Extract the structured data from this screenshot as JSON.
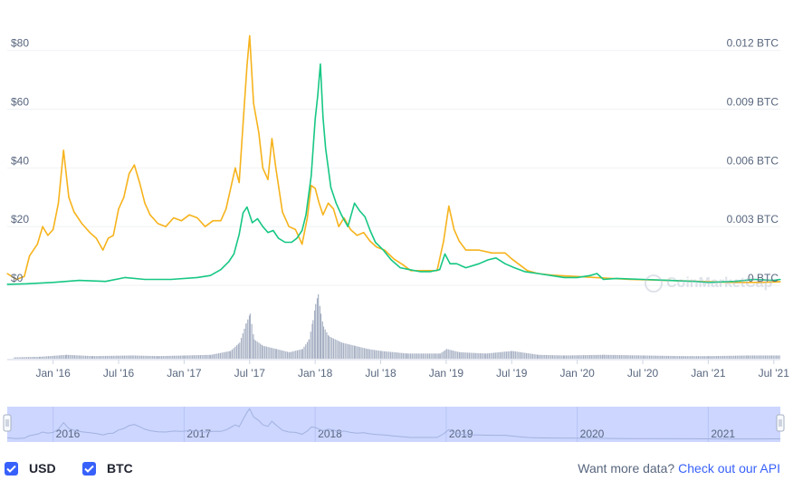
{
  "chart_data": {
    "type": "line",
    "x_labels": [
      "Jan '16",
      "Jul '16",
      "Jan '17",
      "Jul '17",
      "Jan '18",
      "Jul '18",
      "Jan '19",
      "Jul '19",
      "Jan '20",
      "Jul '20",
      "Jan '21",
      "Jul '21"
    ],
    "x": [
      2016.0,
      2016.5,
      2017.0,
      2017.5,
      2018.0,
      2018.5,
      2019.0,
      2019.5,
      2020.0,
      2020.5,
      2021.0,
      2021.5
    ],
    "xlim": [
      2015.65,
      2021.55
    ],
    "y_left": {
      "ticks": [
        "$0",
        "$20",
        "$40",
        "$60",
        "$80"
      ],
      "values": [
        0,
        20,
        40,
        60,
        80
      ],
      "ylim": [
        0,
        83
      ]
    },
    "y_right": {
      "ticks": [
        "0 BTC",
        "0.003 BTC",
        "0.006 BTC",
        "0.009 BTC",
        "0.012 BTC"
      ],
      "values": [
        0,
        0.003,
        0.006,
        0.009,
        0.012
      ],
      "ylim": [
        0,
        0.01245
      ]
    },
    "series": [
      {
        "name": "USD",
        "axis": "left",
        "color": "#f6b31c",
        "points": [
          [
            2015.65,
            4
          ],
          [
            2015.72,
            2
          ],
          [
            2015.78,
            3
          ],
          [
            2015.82,
            10
          ],
          [
            2015.88,
            14
          ],
          [
            2015.92,
            20
          ],
          [
            2015.96,
            17
          ],
          [
            2016.0,
            19
          ],
          [
            2016.04,
            28
          ],
          [
            2016.08,
            46
          ],
          [
            2016.12,
            30
          ],
          [
            2016.16,
            25
          ],
          [
            2016.22,
            21
          ],
          [
            2016.28,
            18
          ],
          [
            2016.33,
            16
          ],
          [
            2016.38,
            12
          ],
          [
            2016.42,
            16
          ],
          [
            2016.46,
            17
          ],
          [
            2016.5,
            26
          ],
          [
            2016.54,
            30
          ],
          [
            2016.58,
            38
          ],
          [
            2016.62,
            41
          ],
          [
            2016.66,
            35
          ],
          [
            2016.7,
            28
          ],
          [
            2016.74,
            24
          ],
          [
            2016.8,
            21
          ],
          [
            2016.86,
            20
          ],
          [
            2016.92,
            23
          ],
          [
            2016.98,
            22
          ],
          [
            2017.04,
            24
          ],
          [
            2017.1,
            23
          ],
          [
            2017.16,
            20
          ],
          [
            2017.22,
            22
          ],
          [
            2017.28,
            22
          ],
          [
            2017.32,
            26
          ],
          [
            2017.36,
            34
          ],
          [
            2017.39,
            40
          ],
          [
            2017.42,
            35
          ],
          [
            2017.45,
            55
          ],
          [
            2017.48,
            75
          ],
          [
            2017.5,
            85
          ],
          [
            2017.53,
            62
          ],
          [
            2017.57,
            52
          ],
          [
            2017.6,
            40
          ],
          [
            2017.64,
            36
          ],
          [
            2017.67,
            50
          ],
          [
            2017.7,
            40
          ],
          [
            2017.75,
            25
          ],
          [
            2017.8,
            20
          ],
          [
            2017.85,
            19
          ],
          [
            2017.9,
            14
          ],
          [
            2017.94,
            23
          ],
          [
            2017.97,
            34
          ],
          [
            2018.0,
            33
          ],
          [
            2018.03,
            28
          ],
          [
            2018.06,
            24
          ],
          [
            2018.1,
            28
          ],
          [
            2018.14,
            26
          ],
          [
            2018.18,
            20
          ],
          [
            2018.22,
            23
          ],
          [
            2018.27,
            19
          ],
          [
            2018.32,
            17
          ],
          [
            2018.37,
            18
          ],
          [
            2018.42,
            15
          ],
          [
            2018.47,
            13
          ],
          [
            2018.53,
            12
          ],
          [
            2018.6,
            9
          ],
          [
            2018.67,
            7
          ],
          [
            2018.73,
            5
          ],
          [
            2018.8,
            5
          ],
          [
            2018.87,
            5
          ],
          [
            2018.93,
            5
          ],
          [
            2018.98,
            15
          ],
          [
            2019.02,
            27
          ],
          [
            2019.06,
            19
          ],
          [
            2019.1,
            15
          ],
          [
            2019.15,
            12
          ],
          [
            2019.25,
            12
          ],
          [
            2019.35,
            11
          ],
          [
            2019.45,
            11
          ],
          [
            2019.5,
            9
          ],
          [
            2019.56,
            7
          ],
          [
            2019.62,
            5
          ],
          [
            2019.7,
            4
          ],
          [
            2019.8,
            3.5
          ],
          [
            2019.9,
            3.2
          ],
          [
            2020.0,
            3
          ],
          [
            2020.2,
            2.5
          ],
          [
            2020.4,
            2
          ],
          [
            2020.6,
            1.8
          ],
          [
            2020.8,
            1.5
          ],
          [
            2021.0,
            1.2
          ],
          [
            2021.2,
            1
          ],
          [
            2021.4,
            1
          ],
          [
            2021.55,
            1.2
          ]
        ]
      },
      {
        "name": "BTC",
        "axis": "right",
        "color": "#16c784",
        "points": [
          [
            2015.65,
            5e-05
          ],
          [
            2015.8,
            8e-05
          ],
          [
            2016.0,
            0.00015
          ],
          [
            2016.2,
            0.00025
          ],
          [
            2016.4,
            0.0002
          ],
          [
            2016.55,
            0.0004
          ],
          [
            2016.7,
            0.0003
          ],
          [
            2016.9,
            0.0003
          ],
          [
            2017.1,
            0.0004
          ],
          [
            2017.2,
            0.0005
          ],
          [
            2017.28,
            0.0008
          ],
          [
            2017.34,
            0.0012
          ],
          [
            2017.38,
            0.0016
          ],
          [
            2017.42,
            0.0026
          ],
          [
            2017.45,
            0.0037
          ],
          [
            2017.48,
            0.004
          ],
          [
            2017.52,
            0.0032
          ],
          [
            2017.56,
            0.0034
          ],
          [
            2017.6,
            0.003
          ],
          [
            2017.64,
            0.0027
          ],
          [
            2017.68,
            0.0028
          ],
          [
            2017.72,
            0.0024
          ],
          [
            2017.77,
            0.0022
          ],
          [
            2017.82,
            0.0022
          ],
          [
            2017.86,
            0.0024
          ],
          [
            2017.9,
            0.0028
          ],
          [
            2017.93,
            0.0036
          ],
          [
            2017.97,
            0.0056
          ],
          [
            2018.0,
            0.0085
          ],
          [
            2018.02,
            0.0097
          ],
          [
            2018.04,
            0.0113
          ],
          [
            2018.06,
            0.0086
          ],
          [
            2018.08,
            0.007
          ],
          [
            2018.12,
            0.005
          ],
          [
            2018.16,
            0.0042
          ],
          [
            2018.2,
            0.0036
          ],
          [
            2018.25,
            0.003
          ],
          [
            2018.3,
            0.0042
          ],
          [
            2018.34,
            0.0038
          ],
          [
            2018.38,
            0.0035
          ],
          [
            2018.42,
            0.0028
          ],
          [
            2018.46,
            0.0022
          ],
          [
            2018.52,
            0.0018
          ],
          [
            2018.58,
            0.0013
          ],
          [
            2018.65,
            0.0009
          ],
          [
            2018.72,
            0.0008
          ],
          [
            2018.8,
            0.0007
          ],
          [
            2018.88,
            0.0007
          ],
          [
            2018.95,
            0.0008
          ],
          [
            2018.99,
            0.0016
          ],
          [
            2019.03,
            0.0011
          ],
          [
            2019.08,
            0.0011
          ],
          [
            2019.15,
            0.0009
          ],
          [
            2019.25,
            0.0011
          ],
          [
            2019.32,
            0.0013
          ],
          [
            2019.38,
            0.0014
          ],
          [
            2019.45,
            0.0011
          ],
          [
            2019.52,
            0.0009
          ],
          [
            2019.6,
            0.0007
          ],
          [
            2019.7,
            0.0006
          ],
          [
            2019.8,
            0.0005
          ],
          [
            2019.9,
            0.0004
          ],
          [
            2020.0,
            0.0004
          ],
          [
            2020.1,
            0.0005
          ],
          [
            2020.15,
            0.0006
          ],
          [
            2020.2,
            0.0003
          ],
          [
            2020.3,
            0.00035
          ],
          [
            2020.5,
            0.0003
          ],
          [
            2020.7,
            0.00025
          ],
          [
            2020.9,
            0.0002
          ],
          [
            2021.0,
            0.00015
          ],
          [
            2021.2,
            0.0002
          ],
          [
            2021.35,
            0.0003
          ],
          [
            2021.5,
            0.00025
          ],
          [
            2021.55,
            0.0003
          ]
        ]
      }
    ],
    "volume": {
      "color": "#a6b0c3",
      "points": [
        [
          2015.7,
          0.02
        ],
        [
          2015.9,
          0.03
        ],
        [
          2016.1,
          0.06
        ],
        [
          2016.3,
          0.04
        ],
        [
          2016.6,
          0.05
        ],
        [
          2016.8,
          0.04
        ],
        [
          2017.0,
          0.05
        ],
        [
          2017.2,
          0.06
        ],
        [
          2017.35,
          0.12
        ],
        [
          2017.42,
          0.25
        ],
        [
          2017.47,
          0.55
        ],
        [
          2017.5,
          0.7
        ],
        [
          2017.53,
          0.3
        ],
        [
          2017.6,
          0.2
        ],
        [
          2017.7,
          0.15
        ],
        [
          2017.8,
          0.1
        ],
        [
          2017.9,
          0.15
        ],
        [
          2017.95,
          0.3
        ],
        [
          2017.98,
          0.6
        ],
        [
          2018.0,
          0.85
        ],
        [
          2018.02,
          1.0
        ],
        [
          2018.04,
          0.7
        ],
        [
          2018.06,
          0.5
        ],
        [
          2018.1,
          0.35
        ],
        [
          2018.2,
          0.25
        ],
        [
          2018.3,
          0.2
        ],
        [
          2018.4,
          0.15
        ],
        [
          2018.5,
          0.12
        ],
        [
          2018.7,
          0.08
        ],
        [
          2018.95,
          0.08
        ],
        [
          2019.0,
          0.15
        ],
        [
          2019.1,
          0.1
        ],
        [
          2019.3,
          0.08
        ],
        [
          2019.5,
          0.12
        ],
        [
          2019.7,
          0.06
        ],
        [
          2019.9,
          0.05
        ],
        [
          2020.2,
          0.06
        ],
        [
          2020.5,
          0.05
        ],
        [
          2020.8,
          0.04
        ],
        [
          2021.0,
          0.04
        ],
        [
          2021.3,
          0.05
        ],
        [
          2021.55,
          0.05
        ]
      ]
    },
    "navigator": {
      "labels": [
        "2016",
        "2017",
        "2018",
        "2019",
        "2020",
        "2021"
      ],
      "x": [
        2016.0,
        2017.0,
        2018.0,
        2019.0,
        2020.0,
        2021.0
      ],
      "fill": "#ccd6ff",
      "handle_range": [
        2015.65,
        2021.55
      ]
    },
    "grid": true
  },
  "watermark": "CoinMarketCap",
  "legend": [
    {
      "label": "USD",
      "checked": true
    },
    {
      "label": "BTC",
      "checked": true
    }
  ],
  "api_note": {
    "text": "Want more data?",
    "link": "Check out our API"
  },
  "colors": {
    "accent": "#3861fb",
    "usd": "#f6b31c",
    "btc": "#16c784",
    "grid": "#eff2f5",
    "text": "#58667e"
  }
}
